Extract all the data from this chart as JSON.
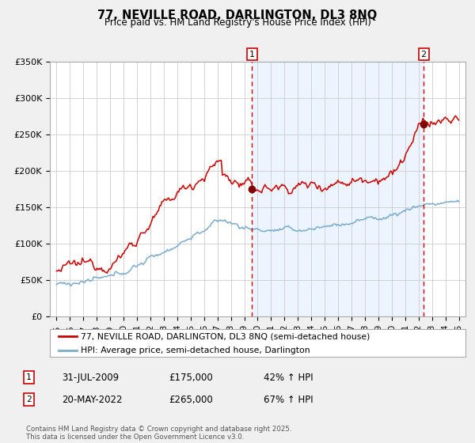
{
  "title": "77, NEVILLE ROAD, DARLINGTON, DL3 8NQ",
  "subtitle": "Price paid vs. HM Land Registry's House Price Index (HPI)",
  "red_label": "77, NEVILLE ROAD, DARLINGTON, DL3 8NQ (semi-detached house)",
  "blue_label": "HPI: Average price, semi-detached house, Darlington",
  "annotation1_date": "31-JUL-2009",
  "annotation1_price": "£175,000",
  "annotation1_hpi": "42% ↑ HPI",
  "annotation2_date": "20-MAY-2022",
  "annotation2_price": "£265,000",
  "annotation2_hpi": "67% ↑ HPI",
  "vline1_x": 2009.58,
  "vline2_x": 2022.38,
  "marker1_red_y": 175000,
  "marker2_red_y": 265000,
  "ylim": [
    0,
    350000
  ],
  "xlim": [
    1994.5,
    2025.5
  ],
  "yticks": [
    0,
    50000,
    100000,
    150000,
    200000,
    250000,
    300000,
    350000
  ],
  "ytick_labels": [
    "£0",
    "£50K",
    "£100K",
    "£150K",
    "£200K",
    "£250K",
    "£300K",
    "£350K"
  ],
  "xticks": [
    1995,
    1996,
    1997,
    1998,
    1999,
    2000,
    2001,
    2002,
    2003,
    2004,
    2005,
    2006,
    2007,
    2008,
    2009,
    2010,
    2011,
    2012,
    2013,
    2014,
    2015,
    2016,
    2017,
    2018,
    2019,
    2020,
    2021,
    2022,
    2023,
    2024,
    2025
  ],
  "shade_color": "#ddeeff",
  "shade_alpha": 0.55,
  "plot_bg": "#ffffff",
  "fig_bg": "#f0f0f0",
  "grid_color": "#cccccc",
  "red_color": "#cc0000",
  "blue_color": "#7aaacc",
  "vline_color": "#cc0000",
  "marker_color": "#800000",
  "footnote": "Contains HM Land Registry data © Crown copyright and database right 2025.\nThis data is licensed under the Open Government Licence v3.0."
}
